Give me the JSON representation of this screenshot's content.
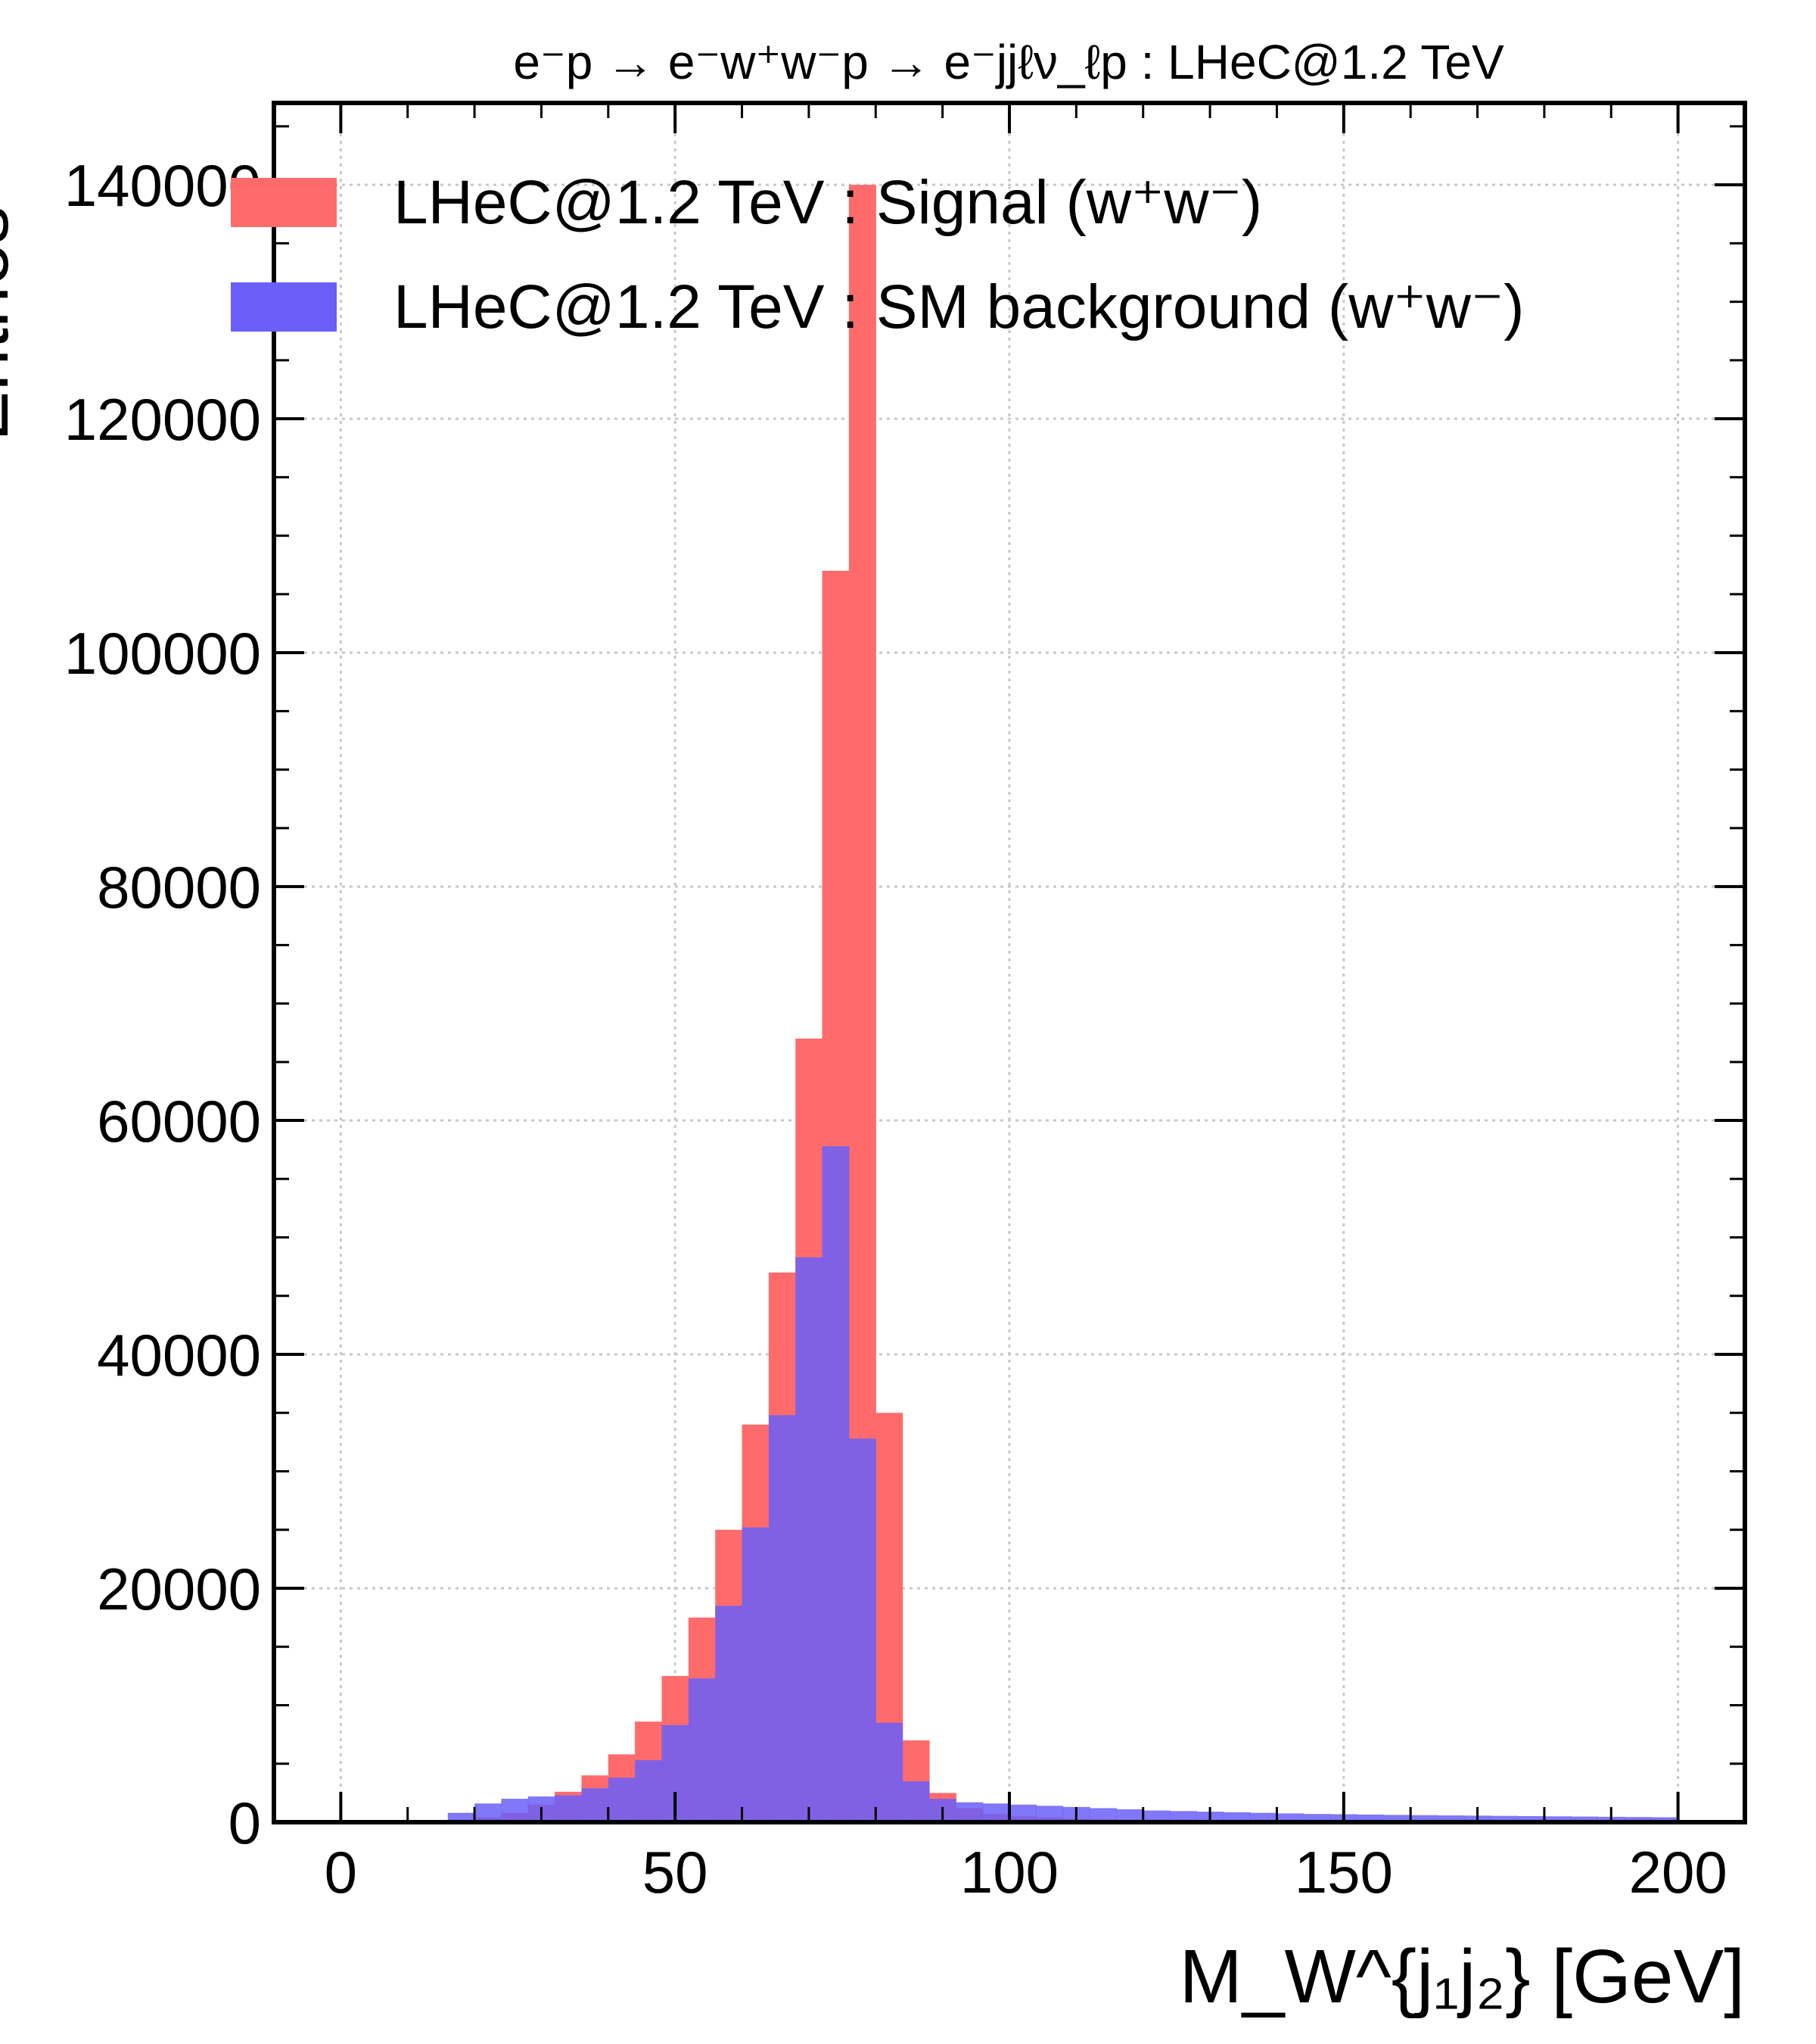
{
  "chart_data": {
    "type": "bar",
    "title": "e⁻p → e⁻w⁺w⁻p → e⁻jjℓν_ℓp : LHeC@1.2 TeV",
    "xlabel": "M_W^{j₁j₂} [GeV]",
    "ylabel": "Entries",
    "xlim": [
      -10,
      210
    ],
    "ylim": [
      0,
      147000
    ],
    "x_ticks": [
      "0",
      "50",
      "100",
      "150",
      "200"
    ],
    "y_ticks": [
      "0",
      "20000",
      "40000",
      "60000",
      "80000",
      "100000",
      "120000",
      "140000"
    ],
    "grid": true,
    "legend_position": "top-left",
    "bin_edges": [
      0,
      4,
      8,
      12,
      16,
      20,
      24,
      28,
      32,
      36,
      40,
      44,
      48,
      52,
      56,
      60,
      64,
      68,
      72,
      76,
      80,
      84,
      88,
      92,
      96,
      100,
      104,
      108,
      112,
      116,
      120,
      124,
      128,
      132,
      136,
      140,
      144,
      148,
      152,
      156,
      160,
      164,
      168,
      172,
      176,
      180,
      184,
      188,
      192,
      196,
      200
    ],
    "series": [
      {
        "name": "LHeC@1.2 TeV : Signal (w⁺w⁻)",
        "color": "#ff6b6b",
        "values": [
          0,
          0,
          0,
          0,
          200,
          400,
          800,
          1500,
          2600,
          4000,
          5800,
          8600,
          12500,
          17500,
          25000,
          34000,
          47000,
          67000,
          107000,
          140000,
          35000,
          7000,
          2500,
          1200,
          700,
          500,
          400,
          300,
          250,
          200,
          150,
          120,
          100,
          80,
          70,
          60,
          50,
          40,
          30,
          25,
          20,
          15,
          12,
          10,
          8,
          6,
          5,
          4,
          3,
          2
        ]
      },
      {
        "name": "LHeC@1.2 TeV : SM background (w⁺w⁻)",
        "color": "#6a5ff8",
        "values": [
          0,
          0,
          0,
          0,
          800,
          1600,
          2000,
          2200,
          2300,
          2900,
          3800,
          5300,
          8300,
          12300,
          18500,
          25200,
          34800,
          48300,
          57800,
          32800,
          8500,
          3500,
          2000,
          1700,
          1600,
          1500,
          1400,
          1300,
          1200,
          1100,
          1000,
          950,
          900,
          850,
          800,
          750,
          700,
          680,
          650,
          620,
          600,
          580,
          560,
          540,
          520,
          500,
          480,
          460,
          440,
          420
        ]
      }
    ]
  }
}
